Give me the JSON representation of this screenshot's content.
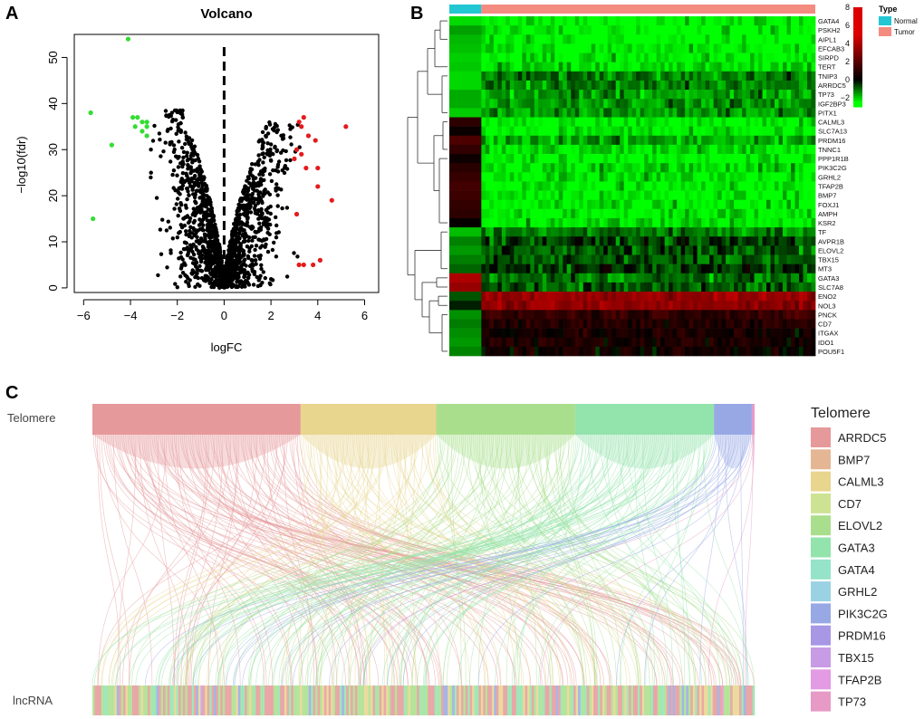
{
  "colors": {
    "up": "#e41a1c",
    "down": "#33dd33",
    "ns": "#000000",
    "heat_low": "#00ff00",
    "heat_mid": "#000000",
    "heat_high": "#ff0000",
    "normal": "#23c7d3",
    "tumor": "#f48b80"
  },
  "panels": {
    "a": "A",
    "b": "B",
    "c": "C"
  },
  "chart_data": [
    {
      "type": "scatter",
      "panel": "A",
      "title": "Volcano",
      "xlabel": "logFC",
      "ylabel": "−log10(fdr)",
      "xlim": [
        -6.4,
        6.6
      ],
      "ylim": [
        -1,
        55
      ],
      "xticks": [
        -6,
        -4,
        -2,
        0,
        2,
        4,
        6
      ],
      "yticks": [
        0,
        10,
        20,
        30,
        40,
        50
      ],
      "xtick_labels": [
        "−6",
        "−4",
        "−2",
        "0",
        "2",
        "4",
        "6"
      ],
      "ytick_labels": [
        "0",
        "10",
        "20",
        "30",
        "40",
        "50"
      ],
      "vline": 0,
      "series": [
        {
          "name": "down",
          "points": [
            [
              -5.7,
              38
            ],
            [
              -5.6,
              15
            ],
            [
              -4.8,
              31
            ],
            [
              -4.1,
              54
            ],
            [
              -3.9,
              37
            ],
            [
              -3.7,
              37
            ],
            [
              -3.8,
              35
            ],
            [
              -3.5,
              36
            ],
            [
              -3.3,
              36
            ],
            [
              -3.3,
              35
            ],
            [
              -3.5,
              34
            ],
            [
              -3.3,
              33
            ]
          ]
        },
        {
          "name": "up",
          "points": [
            [
              3.2,
              36
            ],
            [
              3.4,
              37
            ],
            [
              3.3,
              35
            ],
            [
              3.6,
              33
            ],
            [
              3.1,
              30
            ],
            [
              3.3,
              29
            ],
            [
              3.0,
              28
            ],
            [
              3.5,
              26
            ],
            [
              3.9,
              32
            ],
            [
              4.0,
              26
            ],
            [
              4.0,
              22
            ],
            [
              4.6,
              19
            ],
            [
              5.2,
              35
            ],
            [
              3.1,
              16
            ],
            [
              3.2,
              5
            ],
            [
              3.4,
              5
            ],
            [
              3.8,
              5
            ],
            [
              4.1,
              6
            ]
          ]
        }
      ],
      "ns_shape": {
        "count": 1500,
        "xmin": -3.5,
        "xmax": 3.5,
        "ymax": 38.5,
        "ypeak_left": 39,
        "ypeak_right": 36
      }
    },
    {
      "type": "heatmap",
      "panel": "B",
      "genes": [
        "GATA4",
        "PSKH2",
        "AIPL1",
        "EFCAB3",
        "SIRPD",
        "TERT",
        "TNIP3",
        "ARRDC5",
        "TP73",
        "IGF2BP3",
        "PITX1",
        "CALML3",
        "SLC7A13",
        "PRDM16",
        "TNNC1",
        "PPP1R1B",
        "PIK3C2G",
        "GRHL2",
        "TFAP2B",
        "BMP7",
        "FOXJ1",
        "AMPH",
        "KSR2",
        "TF",
        "AVPR1B",
        "ELOVL2",
        "TBX15",
        "MT3",
        "GATA3",
        "SLC7A8",
        "ENO2",
        "NOL3",
        "PNCK",
        "CD7",
        "ITGAX",
        "IDO1",
        "POU5F1"
      ],
      "normal_means": [
        -2,
        -1.6,
        -2,
        -2,
        -2,
        -2,
        -2,
        -2,
        -2,
        -2,
        -2,
        1,
        0.5,
        1.5,
        1,
        0.5,
        0.8,
        1.2,
        1.5,
        1.3,
        1,
        0.8,
        0.3,
        -1.8,
        -1.5,
        -1.6,
        -1.4,
        -1.2,
        4,
        3.5,
        -0.8,
        -0.5,
        -1.5,
        -1.5,
        -1.2,
        -1.4,
        -1.3
      ],
      "tumor_means": [
        -2.5,
        -2.4,
        -2.5,
        -2.4,
        -2.4,
        -2.3,
        -1.2,
        -1.3,
        -1.5,
        -1.4,
        -1.5,
        -2.5,
        -2.4,
        -1.6,
        -2.2,
        -2.4,
        -2.2,
        -2.3,
        -2.4,
        -2.4,
        -2.3,
        -2.4,
        -2.3,
        -1.2,
        -0.6,
        -0.8,
        -0.9,
        -0.5,
        -1.1,
        -0.9,
        3.5,
        3.2,
        1.2,
        0.8,
        0.5,
        0.6,
        0.4
      ],
      "sample_groups": [
        {
          "name": "Normal",
          "count": 35
        },
        {
          "name": "Tumor",
          "count": 365
        }
      ],
      "legend_title": "Type",
      "legend_groups": [
        "Normal",
        "Tumor"
      ],
      "colorbar": {
        "min": -3,
        "max": 8,
        "ticks": [
          8,
          6,
          4,
          2,
          0,
          -2
        ],
        "tick_labels": [
          "8",
          "6",
          "4",
          "2",
          "0",
          "−2"
        ]
      }
    },
    {
      "type": "sankey",
      "panel": "C",
      "top_label": "Telomere",
      "bottom_label": "lncRNA",
      "legend_title": "Telomere",
      "categories": [
        "ARRDC5",
        "BMP7",
        "CALML3",
        "CD7",
        "ELOVL2",
        "GATA3",
        "GATA4",
        "GRHL2",
        "PIK3C2G",
        "PRDM16",
        "TBX15",
        "TFAP2B",
        "TP73"
      ],
      "category_colors": [
        "#e6999a",
        "#e5b693",
        "#e8d58e",
        "#cde393",
        "#a9df8c",
        "#93e3ac",
        "#95e3c9",
        "#9ad2e4",
        "#98a8e5",
        "#a797e5",
        "#c89be5",
        "#e39be3",
        "#e69ac5"
      ],
      "weights": [
        0.315,
        0.0001,
        0.205,
        0.0001,
        0.21,
        0.21,
        0.0001,
        0.0001,
        0.057,
        0.0001,
        0.0001,
        0.0001,
        0.004
      ]
    }
  ]
}
